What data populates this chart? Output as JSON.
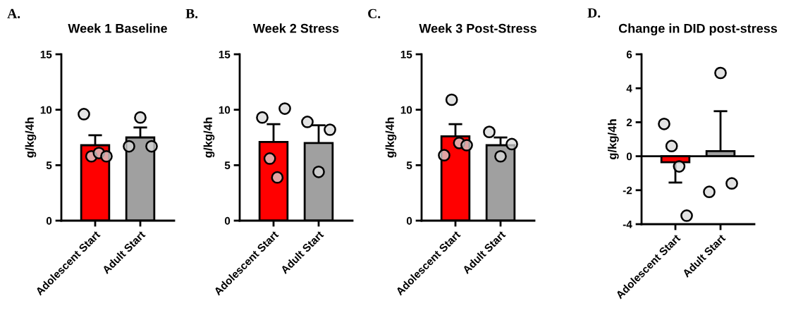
{
  "chart_data": [
    {
      "type": "bar",
      "title": "Week 1 Baseline",
      "ylabel": "g/kg/4h",
      "annotations": [
        "A."
      ],
      "categories": [
        "Adolescent Start",
        "Adult Start"
      ],
      "ylim": [
        0,
        15
      ],
      "yticks": [
        0,
        5,
        10,
        15
      ],
      "grid": false,
      "legend": false,
      "series": [
        {
          "values": [
            6.8,
            7.5
          ],
          "colors": [
            "#ff0000",
            "#a0a0a0"
          ],
          "errors": [
            [
              6.8,
              7.7
            ],
            [
              7.5,
              8.4
            ]
          ]
        },
        {
          "type": "scatter",
          "marker": "circle",
          "color": "#d9d9d9",
          "x": [
            "Adolescent Start",
            "Adolescent Start",
            "Adolescent Start",
            "Adolescent Start",
            "Adult Start",
            "Adult Start",
            "Adult Start"
          ],
          "values": [
            9.6,
            5.8,
            6.1,
            5.8,
            6.7,
            9.3,
            6.7
          ]
        }
      ]
    },
    {
      "type": "bar",
      "title": "Week 2 Stress",
      "ylabel": "g/kg/4h",
      "annotations": [
        "B."
      ],
      "categories": [
        "Adolescent Start",
        "Adult Start"
      ],
      "ylim": [
        0,
        15
      ],
      "yticks": [
        0,
        5,
        10,
        15
      ],
      "grid": false,
      "legend": false,
      "series": [
        {
          "values": [
            7.1,
            7.0
          ],
          "colors": [
            "#ff0000",
            "#a0a0a0"
          ],
          "errors": [
            [
              7.1,
              8.7
            ],
            [
              7.0,
              8.6
            ]
          ]
        },
        {
          "type": "scatter",
          "marker": "circle",
          "color": "#d9d9d9",
          "x": [
            "Adolescent Start",
            "Adolescent Start",
            "Adolescent Start",
            "Adolescent Start",
            "Adult Start",
            "Adult Start",
            "Adult Start"
          ],
          "values": [
            9.3,
            5.6,
            3.9,
            10.1,
            8.9,
            4.4,
            8.2
          ]
        }
      ]
    },
    {
      "type": "bar",
      "title": "Week 3 Post-Stress",
      "ylabel": "g/kg/4h",
      "annotations": [
        "C."
      ],
      "categories": [
        "Adolescent Start",
        "Adult Start"
      ],
      "ylim": [
        0,
        15
      ],
      "yticks": [
        0,
        5,
        10,
        15
      ],
      "grid": false,
      "legend": false,
      "series": [
        {
          "values": [
            7.6,
            6.8
          ],
          "colors": [
            "#ff0000",
            "#a0a0a0"
          ],
          "errors": [
            [
              7.6,
              8.7
            ],
            [
              6.8,
              7.5
            ]
          ]
        },
        {
          "type": "scatter",
          "marker": "circle",
          "color": "#d9d9d9",
          "x": [
            "Adolescent Start",
            "Adolescent Start",
            "Adolescent Start",
            "Adolescent Start",
            "Adult Start",
            "Adult Start",
            "Adult Start"
          ],
          "values": [
            5.9,
            10.9,
            7.0,
            6.8,
            8.0,
            5.8,
            6.9
          ]
        }
      ]
    },
    {
      "type": "bar",
      "title": "Change in DID post-stress",
      "ylabel": "g/kg/4h",
      "annotations": [
        "D."
      ],
      "categories": [
        "Adolescent Start",
        "Adult Start"
      ],
      "ylim": [
        -4,
        6
      ],
      "yticks": [
        -4,
        -2,
        0,
        2,
        4,
        6
      ],
      "grid": false,
      "legend": false,
      "ref_lines": [
        {
          "axis": "y",
          "value": 0,
          "color": "#000000"
        }
      ],
      "series": [
        {
          "values": [
            -0.35,
            0.3
          ],
          "colors": [
            "#ff0000",
            "#a0a0a0"
          ],
          "errors": [
            [
              -1.55,
              -0.35
            ],
            [
              0.3,
              2.65
            ]
          ]
        },
        {
          "type": "scatter",
          "marker": "circle",
          "color": "#d9d9d9",
          "x": [
            "Adolescent Start",
            "Adolescent Start",
            "Adolescent Start",
            "Adolescent Start",
            "Adult Start",
            "Adult Start",
            "Adult Start"
          ],
          "values": [
            1.9,
            0.6,
            -0.6,
            -3.5,
            -2.1,
            4.9,
            -1.6
          ]
        }
      ]
    }
  ]
}
